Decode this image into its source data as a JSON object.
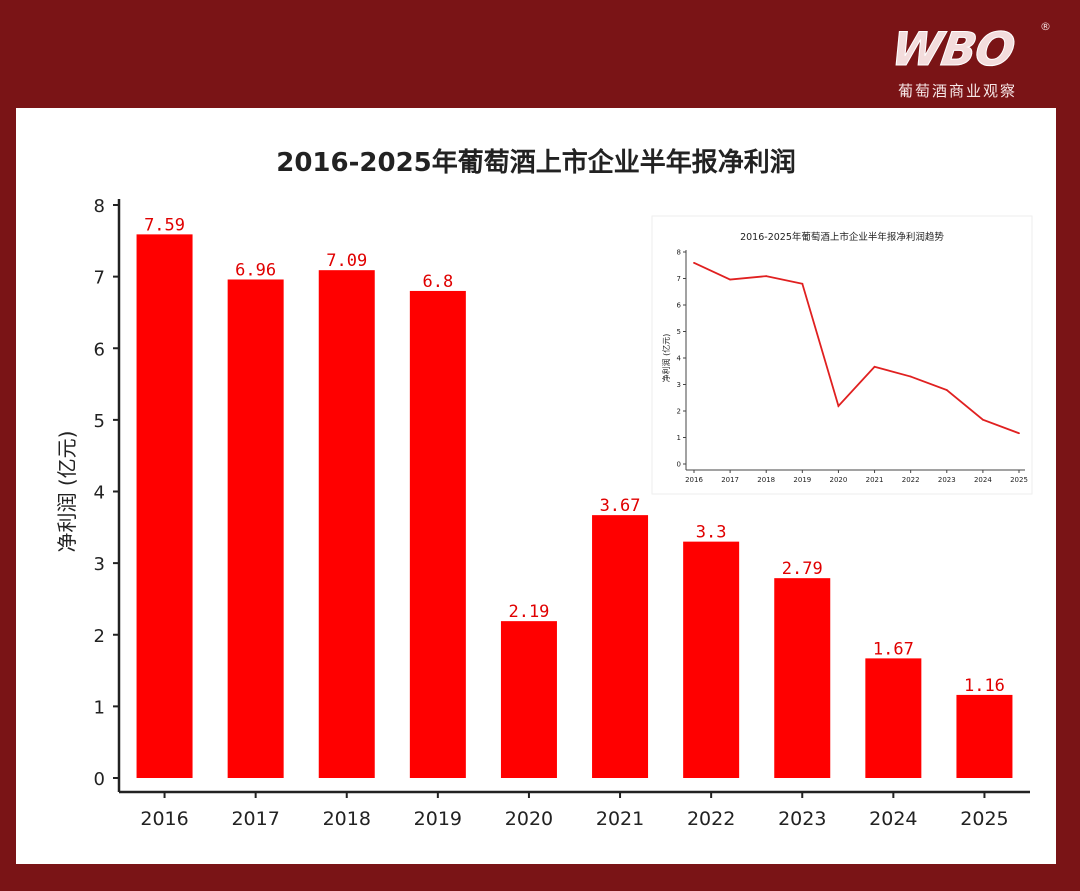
{
  "brand": {
    "logo_text": "WBO",
    "registered_mark": "®",
    "tagline": "葡萄酒商业观察"
  },
  "chart_data": [
    {
      "type": "bar",
      "title": "2016-2025年葡萄酒上市企业半年报净利润",
      "xlabel": "",
      "ylabel": "净利润 (亿元)",
      "categories": [
        "2016",
        "2017",
        "2018",
        "2019",
        "2020",
        "2021",
        "2022",
        "2023",
        "2024",
        "2025"
      ],
      "values": [
        7.59,
        6.96,
        7.09,
        6.8,
        2.19,
        3.67,
        3.3,
        2.79,
        1.67,
        1.16
      ],
      "value_labels": [
        "7.59",
        "6.96",
        "7.09",
        "6.8",
        "2.19",
        "3.67",
        "3.3",
        "2.79",
        "1.67",
        "1.16"
      ],
      "yticks": [
        "0",
        "1",
        "2",
        "3",
        "4",
        "5",
        "6",
        "7",
        "8"
      ],
      "ylim": [
        0,
        8
      ],
      "color": "#ff0000"
    },
    {
      "type": "line",
      "title": "2016-2025年葡萄酒上市企业半年报净利润趋势",
      "xlabel": "",
      "ylabel": "净利润 (亿元)",
      "categories": [
        "2016",
        "2017",
        "2018",
        "2019",
        "2020",
        "2021",
        "2022",
        "2023",
        "2024",
        "2025"
      ],
      "values": [
        7.59,
        6.96,
        7.09,
        6.8,
        2.19,
        3.67,
        3.3,
        2.79,
        1.67,
        1.16
      ],
      "yticks": [
        "0",
        "1",
        "2",
        "3",
        "4",
        "5",
        "6",
        "7",
        "8"
      ],
      "ylim": [
        0,
        8
      ],
      "color": "#e02020"
    }
  ]
}
